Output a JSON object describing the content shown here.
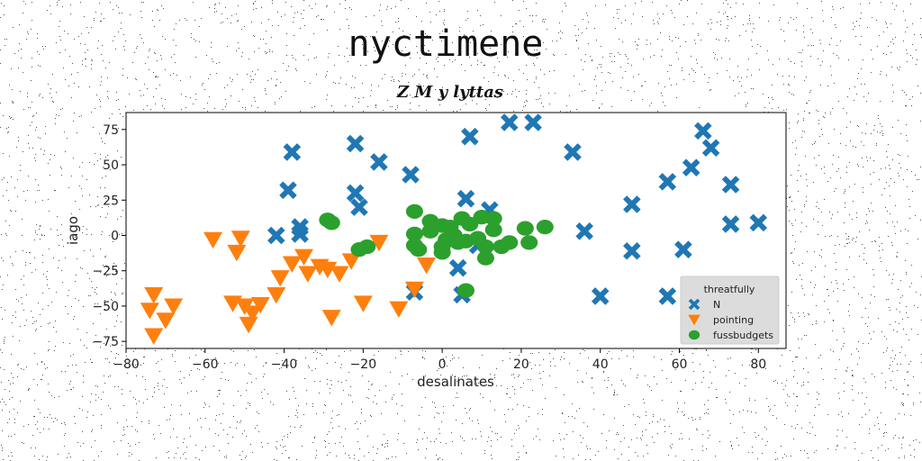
{
  "page": {
    "title": "nyctimene"
  },
  "chart_data": {
    "type": "scatter",
    "title": "Z M y lyttas",
    "xlabel": "desalinates",
    "ylabel": "iago",
    "xlim": [
      -80,
      87
    ],
    "ylim": [
      -80,
      87
    ],
    "xticks": [
      -80,
      -60,
      -40,
      -20,
      0,
      20,
      40,
      60,
      80
    ],
    "yticks": [
      75,
      50,
      25,
      0,
      -25,
      -50,
      -75
    ],
    "xtick_labels": [
      "−80",
      "−60",
      "−40",
      "−20",
      "0",
      "20",
      "40",
      "60",
      "80"
    ],
    "ytick_labels": [
      "75",
      "50",
      "25",
      "0",
      "−25",
      "−50",
      "−75"
    ],
    "grid": false,
    "legend": {
      "title": "threatfully",
      "placement": "bottom-right"
    },
    "series": [
      {
        "name": "N",
        "marker": "x",
        "color": "#1f77b4",
        "points": [
          [
            -38,
            59
          ],
          [
            -22,
            65
          ],
          [
            -16,
            52
          ],
          [
            -8,
            43
          ],
          [
            -39,
            32
          ],
          [
            -22,
            30
          ],
          [
            -21,
            20
          ],
          [
            -36,
            6
          ],
          [
            -36,
            1
          ],
          [
            -42,
            0
          ],
          [
            7,
            70
          ],
          [
            17,
            80
          ],
          [
            23,
            80
          ],
          [
            33,
            59
          ],
          [
            6,
            26
          ],
          [
            12,
            18
          ],
          [
            36,
            3
          ],
          [
            40,
            -43
          ],
          [
            48,
            22
          ],
          [
            48,
            -11
          ],
          [
            57,
            38
          ],
          [
            57,
            -43
          ],
          [
            61,
            -10
          ],
          [
            63,
            48
          ],
          [
            66,
            74
          ],
          [
            68,
            62
          ],
          [
            73,
            36
          ],
          [
            73,
            8
          ],
          [
            80,
            9
          ],
          [
            4,
            -23
          ],
          [
            5,
            -42
          ],
          [
            -7,
            -40
          ],
          [
            9,
            -7
          ]
        ]
      },
      {
        "name": "pointing",
        "marker": "triangle-down",
        "color": "#ff7f0e",
        "points": [
          [
            -58,
            -3
          ],
          [
            -51,
            -2
          ],
          [
            -52,
            -12
          ],
          [
            -73,
            -42
          ],
          [
            -74,
            -53
          ],
          [
            -68,
            -50
          ],
          [
            -70,
            -60
          ],
          [
            -73,
            -71
          ],
          [
            -53,
            -48
          ],
          [
            -50,
            -50
          ],
          [
            -48,
            -55
          ],
          [
            -49,
            -63
          ],
          [
            -46,
            -49
          ],
          [
            -42,
            -42
          ],
          [
            -41,
            -30
          ],
          [
            -38,
            -20
          ],
          [
            -35,
            -15
          ],
          [
            -34,
            -27
          ],
          [
            -31,
            -22
          ],
          [
            -29,
            -24
          ],
          [
            -26,
            -27
          ],
          [
            -23,
            -18
          ],
          [
            -28,
            -58
          ],
          [
            -20,
            -48
          ],
          [
            -16,
            -5
          ],
          [
            -11,
            -52
          ],
          [
            -7,
            -38
          ],
          [
            -4,
            -21
          ]
        ]
      },
      {
        "name": "fussbudgets",
        "marker": "circle",
        "color": "#2ca02c",
        "points": [
          [
            -29,
            11
          ],
          [
            -28,
            9
          ],
          [
            -21,
            -10
          ],
          [
            -19,
            -8
          ],
          [
            -7,
            17
          ],
          [
            -7,
            1
          ],
          [
            -7,
            -7
          ],
          [
            -6,
            -10
          ],
          [
            -3,
            10
          ],
          [
            -3,
            3
          ],
          [
            0,
            7
          ],
          [
            2,
            6
          ],
          [
            1,
            -3
          ],
          [
            0,
            -8
          ],
          [
            0,
            -12
          ],
          [
            3,
            0
          ],
          [
            4,
            -5
          ],
          [
            5,
            12
          ],
          [
            6,
            -4
          ],
          [
            7,
            8
          ],
          [
            9,
            -2
          ],
          [
            10,
            13
          ],
          [
            11,
            -8
          ],
          [
            11,
            -16
          ],
          [
            13,
            12
          ],
          [
            13,
            4
          ],
          [
            15,
            -8
          ],
          [
            17,
            -5
          ],
          [
            21,
            5
          ],
          [
            22,
            -5
          ],
          [
            26,
            6
          ],
          [
            6,
            -39
          ]
        ]
      }
    ]
  }
}
